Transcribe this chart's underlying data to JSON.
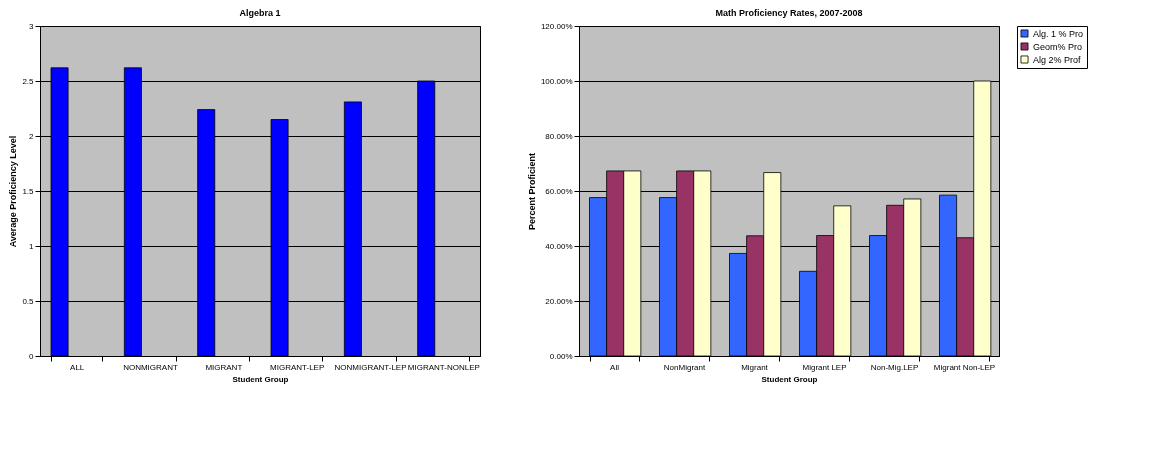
{
  "chart_data": [
    {
      "type": "bar",
      "title": "Algebra 1",
      "xlabel": "Student Group",
      "ylabel": "Average Proficiency Level",
      "categories": [
        "ALL",
        "NONMIGRANT",
        "MIGRANT",
        "MIGRANT-LEP",
        "NONMIGRANT-LEP",
        "MIGRANT-NONLEP"
      ],
      "series": [
        {
          "color": "#0000ff",
          "values": [
            2.62,
            2.62,
            2.24,
            2.15,
            2.31,
            2.5
          ]
        }
      ],
      "ylim": [
        0,
        3
      ],
      "yticks": [
        0,
        0.5,
        1,
        1.5,
        2,
        2.5,
        3
      ],
      "grid": "y"
    },
    {
      "type": "bar",
      "title": "Math Proficiency Rates, 2007-2008",
      "xlabel": "Student Group",
      "ylabel": "Percent Proficient",
      "categories": [
        "All",
        "NonMigrant",
        "Migrant",
        "Migrant LEP",
        "Non-Mig.LEP",
        "Migrant Non-LEP"
      ],
      "series": [
        {
          "name": "Alg. 1 % Pro",
          "color": "#3366ff",
          "values": [
            57.6,
            57.6,
            37.3,
            30.8,
            43.8,
            58.5
          ]
        },
        {
          "name": "Geom% Pro",
          "color": "#993366",
          "values": [
            67.3,
            67.3,
            43.7,
            43.8,
            54.8,
            43.0
          ]
        },
        {
          "name": "Alg 2% Prof",
          "color": "#ffffcc",
          "values": [
            67.3,
            67.3,
            66.7,
            54.6,
            57.1,
            100
          ]
        }
      ],
      "ylim": [
        0,
        120
      ],
      "yticks": [
        {
          "value": 0,
          "label": "0.00%"
        },
        {
          "value": 20,
          "label": "20.00%"
        },
        {
          "value": 40,
          "label": "40.00%"
        },
        {
          "value": 60,
          "label": "60.00%"
        },
        {
          "value": 80,
          "label": "80.00%"
        },
        {
          "value": 100,
          "label": "100.00%"
        },
        {
          "value": 120,
          "label": "120.00%"
        }
      ],
      "grid": "y",
      "legend": "right"
    }
  ]
}
